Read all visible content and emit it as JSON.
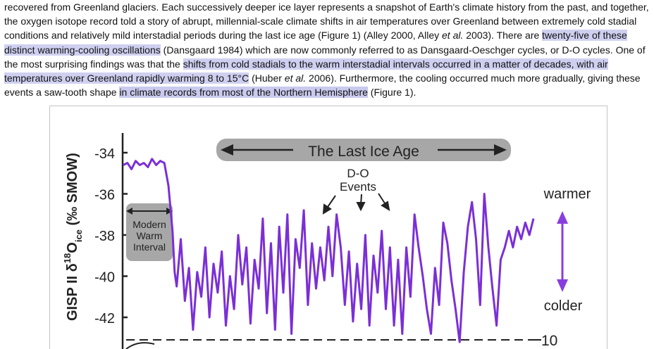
{
  "article": {
    "s1": "recovered from Greenland glaciers. Each successively deeper ice layer represents a snapshot of Earth's climate history from the past, and together, the oxygen isotope record told a story of abrupt, millennial-scale climate shifts in air temperatures over Greenland between extremely cold stadial conditions and relatively mild interstadial periods during the last ice age (Figure 1) (Alley 2000, Alley ",
    "etal1": "et al.",
    "s2": " 2003). There are ",
    "h1": "twenty-five of these distinct warming-cooling oscillations",
    "s3": " (Dansgaard 1984) which are now commonly referred to as Dansgaard-Oeschger cycles, or D-O cycles. One of the most surprising findings was that the ",
    "h2": "shifts from cold stadials to the warm interstadial intervals occurred in a matter of decades, with air temperatures over Greenland rapidly warming 8 to 15°C",
    "s4": " (Huber ",
    "etal2": "et al.",
    "s5": " 2006). Furthermore, the cooling occurred much more gradually, giving these events a saw-tooth shape ",
    "h3": "in climate records from most of the Northern Hemisphere",
    "s6": " (Figure 1)."
  },
  "figure": {
    "ylabel_main": "GISP II δ",
    "ylabel_sup": "18",
    "ylabel_o": "O",
    "ylabel_sub": "ice",
    "ylabel_unit": " (‰ SMOW)",
    "y_ticks": [
      "-34",
      "-36",
      "-38",
      "-40",
      "-42"
    ],
    "right_tick": "10",
    "banner": "The Last Ice Age",
    "do_events": [
      "D-O",
      "Events"
    ],
    "modern_box": [
      "Modern",
      "Warm",
      "Interval"
    ],
    "warmer": "warmer",
    "colder": "colder",
    "colors": {
      "series": "#7b2fd6",
      "arrow": "#8a3ddf",
      "banner_bg": "#a7a7a7",
      "axis": "#222222"
    }
  },
  "chart_data": {
    "type": "line",
    "ylabel": "GISP II δ18O ice (‰ SMOW)",
    "ylim": [
      -43.2,
      -33.3
    ],
    "x_index_range": [
      0,
      100
    ],
    "x": [
      0,
      1,
      2,
      3,
      4,
      5,
      6,
      7,
      8,
      9,
      10,
      11,
      12,
      12.5,
      13,
      14,
      15,
      16,
      17,
      18,
      19,
      20,
      21,
      22,
      23,
      24,
      25,
      26,
      27,
      28,
      29,
      30,
      31,
      32,
      33,
      34,
      35,
      36,
      37,
      38,
      39,
      40,
      41,
      42,
      43,
      44,
      45,
      46,
      47,
      48,
      49,
      50,
      51,
      52,
      53,
      54,
      55,
      56,
      57,
      58,
      59,
      60,
      61,
      62,
      63,
      64,
      65,
      66,
      67,
      68,
      69,
      70,
      71,
      72,
      73,
      74,
      75,
      76,
      77,
      78,
      79,
      80,
      81,
      82,
      83,
      84,
      85,
      86,
      87,
      88,
      89,
      90,
      91,
      92,
      93,
      94,
      95,
      96,
      97,
      98,
      99,
      100
    ],
    "y": [
      -34.6,
      -34.5,
      -34.8,
      -34.4,
      -34.6,
      -34.5,
      -34.7,
      -34.3,
      -34.6,
      -34.4,
      -34.5,
      -35.6,
      -37.8,
      -39.8,
      -40.5,
      -38.2,
      -41.2,
      -39.6,
      -42.6,
      -39.8,
      -41.0,
      -38.6,
      -42.0,
      -39.4,
      -40.8,
      -38.8,
      -42.4,
      -40.0,
      -41.6,
      -38.0,
      -40.4,
      -38.6,
      -42.3,
      -39.2,
      -40.6,
      -37.2,
      -41.8,
      -38.4,
      -42.6,
      -37.6,
      -40.8,
      -37.0,
      -42.8,
      -38.2,
      -39.6,
      -36.8,
      -41.4,
      -38.4,
      -40.6,
      -38.6,
      -40.2,
      -37.6,
      -40.0,
      -37.0,
      -38.6,
      -41.4,
      -38.8,
      -42.2,
      -39.4,
      -41.6,
      -38.0,
      -42.4,
      -39.0,
      -40.8,
      -37.8,
      -41.6,
      -38.6,
      -42.4,
      -39.2,
      -42.8,
      -38.6,
      -41.0,
      -37.0,
      -38.6,
      -40.0,
      -41.6,
      -42.8,
      -39.6,
      -41.4,
      -37.4,
      -38.4,
      -40.2,
      -41.6,
      -43.2,
      -39.8,
      -37.6,
      -36.4,
      -38.2,
      -41.4,
      -36.0,
      -38.6,
      -40.6,
      -42.4,
      -39.2,
      -38.6,
      -37.8,
      -38.6,
      -37.6,
      -38.2,
      -37.4,
      -38.0,
      -37.2
    ]
  }
}
